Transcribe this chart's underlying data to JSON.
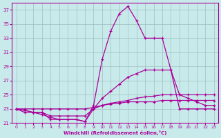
{
  "xlabel": "Windchill (Refroidissement éolien,°C)",
  "background_color": "#c8eaea",
  "grid_color": "#9dbfbf",
  "line_color": "#aa0099",
  "xlim": [
    -0.5,
    23.5
  ],
  "ylim": [
    21,
    38
  ],
  "yticks": [
    21,
    23,
    25,
    27,
    29,
    31,
    33,
    35,
    37
  ],
  "xticks": [
    0,
    1,
    2,
    3,
    4,
    5,
    6,
    7,
    8,
    9,
    10,
    11,
    12,
    13,
    14,
    15,
    16,
    17,
    18,
    19,
    20,
    21,
    22,
    23
  ],
  "series": [
    {
      "x": [
        0,
        1,
        2,
        3,
        4,
        5,
        6,
        7,
        8,
        9,
        10,
        11,
        12,
        13,
        14,
        15,
        16,
        17,
        18,
        19,
        20,
        21,
        22,
        23
      ],
      "y": [
        23,
        22.8,
        22.5,
        22.5,
        21.5,
        21.5,
        21.5,
        21.5,
        21.2,
        23.5,
        30,
        34,
        36.5,
        37.5,
        35.5,
        33,
        33,
        33,
        28.5,
        23,
        23,
        23,
        23,
        23
      ]
    },
    {
      "x": [
        0,
        1,
        2,
        3,
        4,
        5,
        6,
        7,
        8,
        9,
        10,
        11,
        12,
        13,
        14,
        15,
        16,
        17,
        18,
        19,
        20,
        21,
        22,
        23
      ],
      "y": [
        23,
        22.5,
        22.5,
        22.5,
        22,
        22,
        22,
        22,
        22,
        23,
        24.5,
        25.5,
        26.5,
        27.5,
        28,
        28.5,
        28.5,
        28.5,
        28.5,
        25,
        24.5,
        24,
        23.5,
        23.5
      ]
    },
    {
      "x": [
        0,
        1,
        2,
        3,
        4,
        5,
        6,
        7,
        8,
        9,
        10,
        11,
        12,
        13,
        14,
        15,
        16,
        17,
        18,
        19,
        20,
        21,
        22,
        23
      ],
      "y": [
        23,
        23,
        23,
        23,
        23,
        23,
        23,
        23,
        23,
        23.2,
        23.5,
        23.7,
        23.8,
        24,
        24,
        24,
        24,
        24.2,
        24.2,
        24.2,
        24.2,
        24.2,
        24.2,
        24.2
      ]
    },
    {
      "x": [
        0,
        1,
        2,
        3,
        4,
        5,
        6,
        7,
        8,
        9,
        10,
        11,
        12,
        13,
        14,
        15,
        16,
        17,
        18,
        19,
        20,
        21,
        22,
        23
      ],
      "y": [
        23,
        22.8,
        22.5,
        22.2,
        21.8,
        21.5,
        21.5,
        21.5,
        21.2,
        23,
        23.5,
        23.8,
        24,
        24.2,
        24.5,
        24.7,
        24.8,
        25,
        25,
        25,
        25,
        25,
        25,
        25
      ]
    }
  ]
}
